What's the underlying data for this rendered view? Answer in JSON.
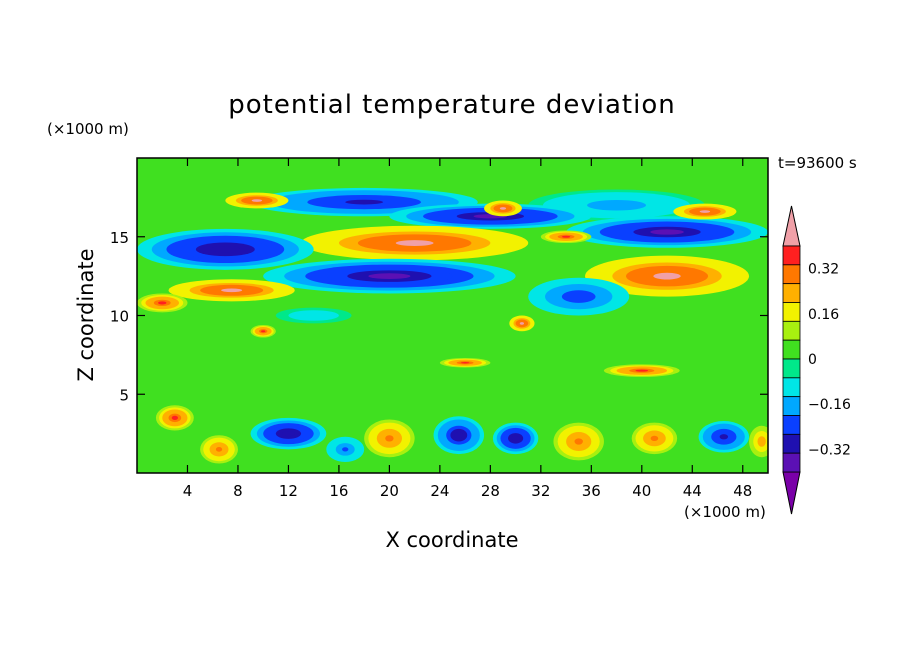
{
  "chart_data": {
    "type": "heatmap",
    "title": "potential temperature deviation",
    "xlabel": "X coordinate",
    "ylabel": "Z coordinate",
    "x_unit": "(×1000 m)",
    "y_unit": "(×1000 m)",
    "time_label": "t=93600 s",
    "xlim": [
      0,
      50
    ],
    "ylim": [
      0,
      20
    ],
    "x_ticks": [
      4,
      8,
      12,
      16,
      20,
      24,
      28,
      32,
      36,
      40,
      44,
      48
    ],
    "y_ticks": [
      5,
      10,
      15
    ],
    "colorbar": {
      "levels": [
        -0.44,
        -0.4,
        -0.32,
        -0.24,
        -0.16,
        -0.08,
        0,
        0.08,
        0.16,
        0.24,
        0.32,
        0.4,
        0.44
      ],
      "colors": [
        "#7a00a8",
        "#5b10b4",
        "#1f10b0",
        "#0a40ff",
        "#00a8ff",
        "#00e6e6",
        "#00e88a",
        "#40e020",
        "#a8f010",
        "#f2f200",
        "#ffb000",
        "#ff7800",
        "#ff2020",
        "#f0a0a8"
      ],
      "tick_values": [
        0.32,
        0.16,
        0,
        -0.16,
        -0.32
      ],
      "tick_labels": [
        "0.32",
        "0.16",
        "0",
        "−0.16",
        "−0.32"
      ]
    },
    "features": [
      {
        "x": 18,
        "z": 17.2,
        "rx": 9,
        "rz": 0.9,
        "v": -0.36
      },
      {
        "x": 38,
        "z": 17.0,
        "rx": 7,
        "rz": 1.0,
        "v": -0.2
      },
      {
        "x": 28,
        "z": 16.3,
        "rx": 8,
        "rz": 0.8,
        "v": -0.42
      },
      {
        "x": 42,
        "z": 15.3,
        "rx": 8,
        "rz": 1.0,
        "v": -0.42
      },
      {
        "x": 22,
        "z": 14.6,
        "rx": 9,
        "rz": 1.1,
        "v": 0.45
      },
      {
        "x": 7,
        "z": 14.2,
        "rx": 7,
        "rz": 1.3,
        "v": -0.4
      },
      {
        "x": 20,
        "z": 12.5,
        "rx": 10,
        "rz": 1.1,
        "v": -0.42
      },
      {
        "x": 7.5,
        "z": 11.6,
        "rx": 5,
        "rz": 0.7,
        "v": 0.45
      },
      {
        "x": 2,
        "z": 10.8,
        "rx": 2,
        "rz": 0.6,
        "v": 0.4
      },
      {
        "x": 42,
        "z": 12.5,
        "rx": 6.5,
        "rz": 1.3,
        "v": 0.45
      },
      {
        "x": 35,
        "z": 11.2,
        "rx": 4,
        "rz": 1.2,
        "v": -0.3
      },
      {
        "x": 9.5,
        "z": 17.3,
        "rx": 2.5,
        "rz": 0.5,
        "v": 0.45
      },
      {
        "x": 29,
        "z": 16.8,
        "rx": 1.5,
        "rz": 0.5,
        "v": 0.45
      },
      {
        "x": 45,
        "z": 16.6,
        "rx": 2.5,
        "rz": 0.5,
        "v": 0.45
      },
      {
        "x": 34,
        "z": 15.0,
        "rx": 2,
        "rz": 0.4,
        "v": 0.4
      },
      {
        "x": 10,
        "z": 9.0,
        "rx": 1,
        "rz": 0.4,
        "v": 0.4
      },
      {
        "x": 30.5,
        "z": 9.5,
        "rx": 1,
        "rz": 0.5,
        "v": 0.45
      },
      {
        "x": 14,
        "z": 10.0,
        "rx": 3,
        "rz": 0.5,
        "v": -0.14
      },
      {
        "x": 26,
        "z": 7.0,
        "rx": 2,
        "rz": 0.3,
        "v": 0.4
      },
      {
        "x": 40,
        "z": 6.5,
        "rx": 3,
        "rz": 0.4,
        "v": 0.4
      },
      {
        "x": 3,
        "z": 3.5,
        "rx": 1.5,
        "rz": 0.8,
        "v": 0.4
      },
      {
        "x": 12,
        "z": 2.5,
        "rx": 3,
        "rz": 1.0,
        "v": -0.4
      },
      {
        "x": 20,
        "z": 2.2,
        "rx": 2,
        "rz": 1.2,
        "v": 0.35
      },
      {
        "x": 25.5,
        "z": 2.4,
        "rx": 2,
        "rz": 1.2,
        "v": -0.38
      },
      {
        "x": 30,
        "z": 2.2,
        "rx": 1.8,
        "rz": 1.0,
        "v": -0.4
      },
      {
        "x": 35,
        "z": 2.0,
        "rx": 2,
        "rz": 1.2,
        "v": 0.35
      },
      {
        "x": 41,
        "z": 2.2,
        "rx": 1.8,
        "rz": 1.0,
        "v": 0.35
      },
      {
        "x": 46.5,
        "z": 2.3,
        "rx": 2,
        "rz": 1.0,
        "v": -0.35
      },
      {
        "x": 6.5,
        "z": 1.5,
        "rx": 1.5,
        "rz": 0.9,
        "v": 0.35
      },
      {
        "x": 16.5,
        "z": 1.5,
        "rx": 1.5,
        "rz": 0.8,
        "v": -0.25
      },
      {
        "x": 49.5,
        "z": 2.0,
        "rx": 1,
        "rz": 1.0,
        "v": 0.3
      }
    ]
  }
}
